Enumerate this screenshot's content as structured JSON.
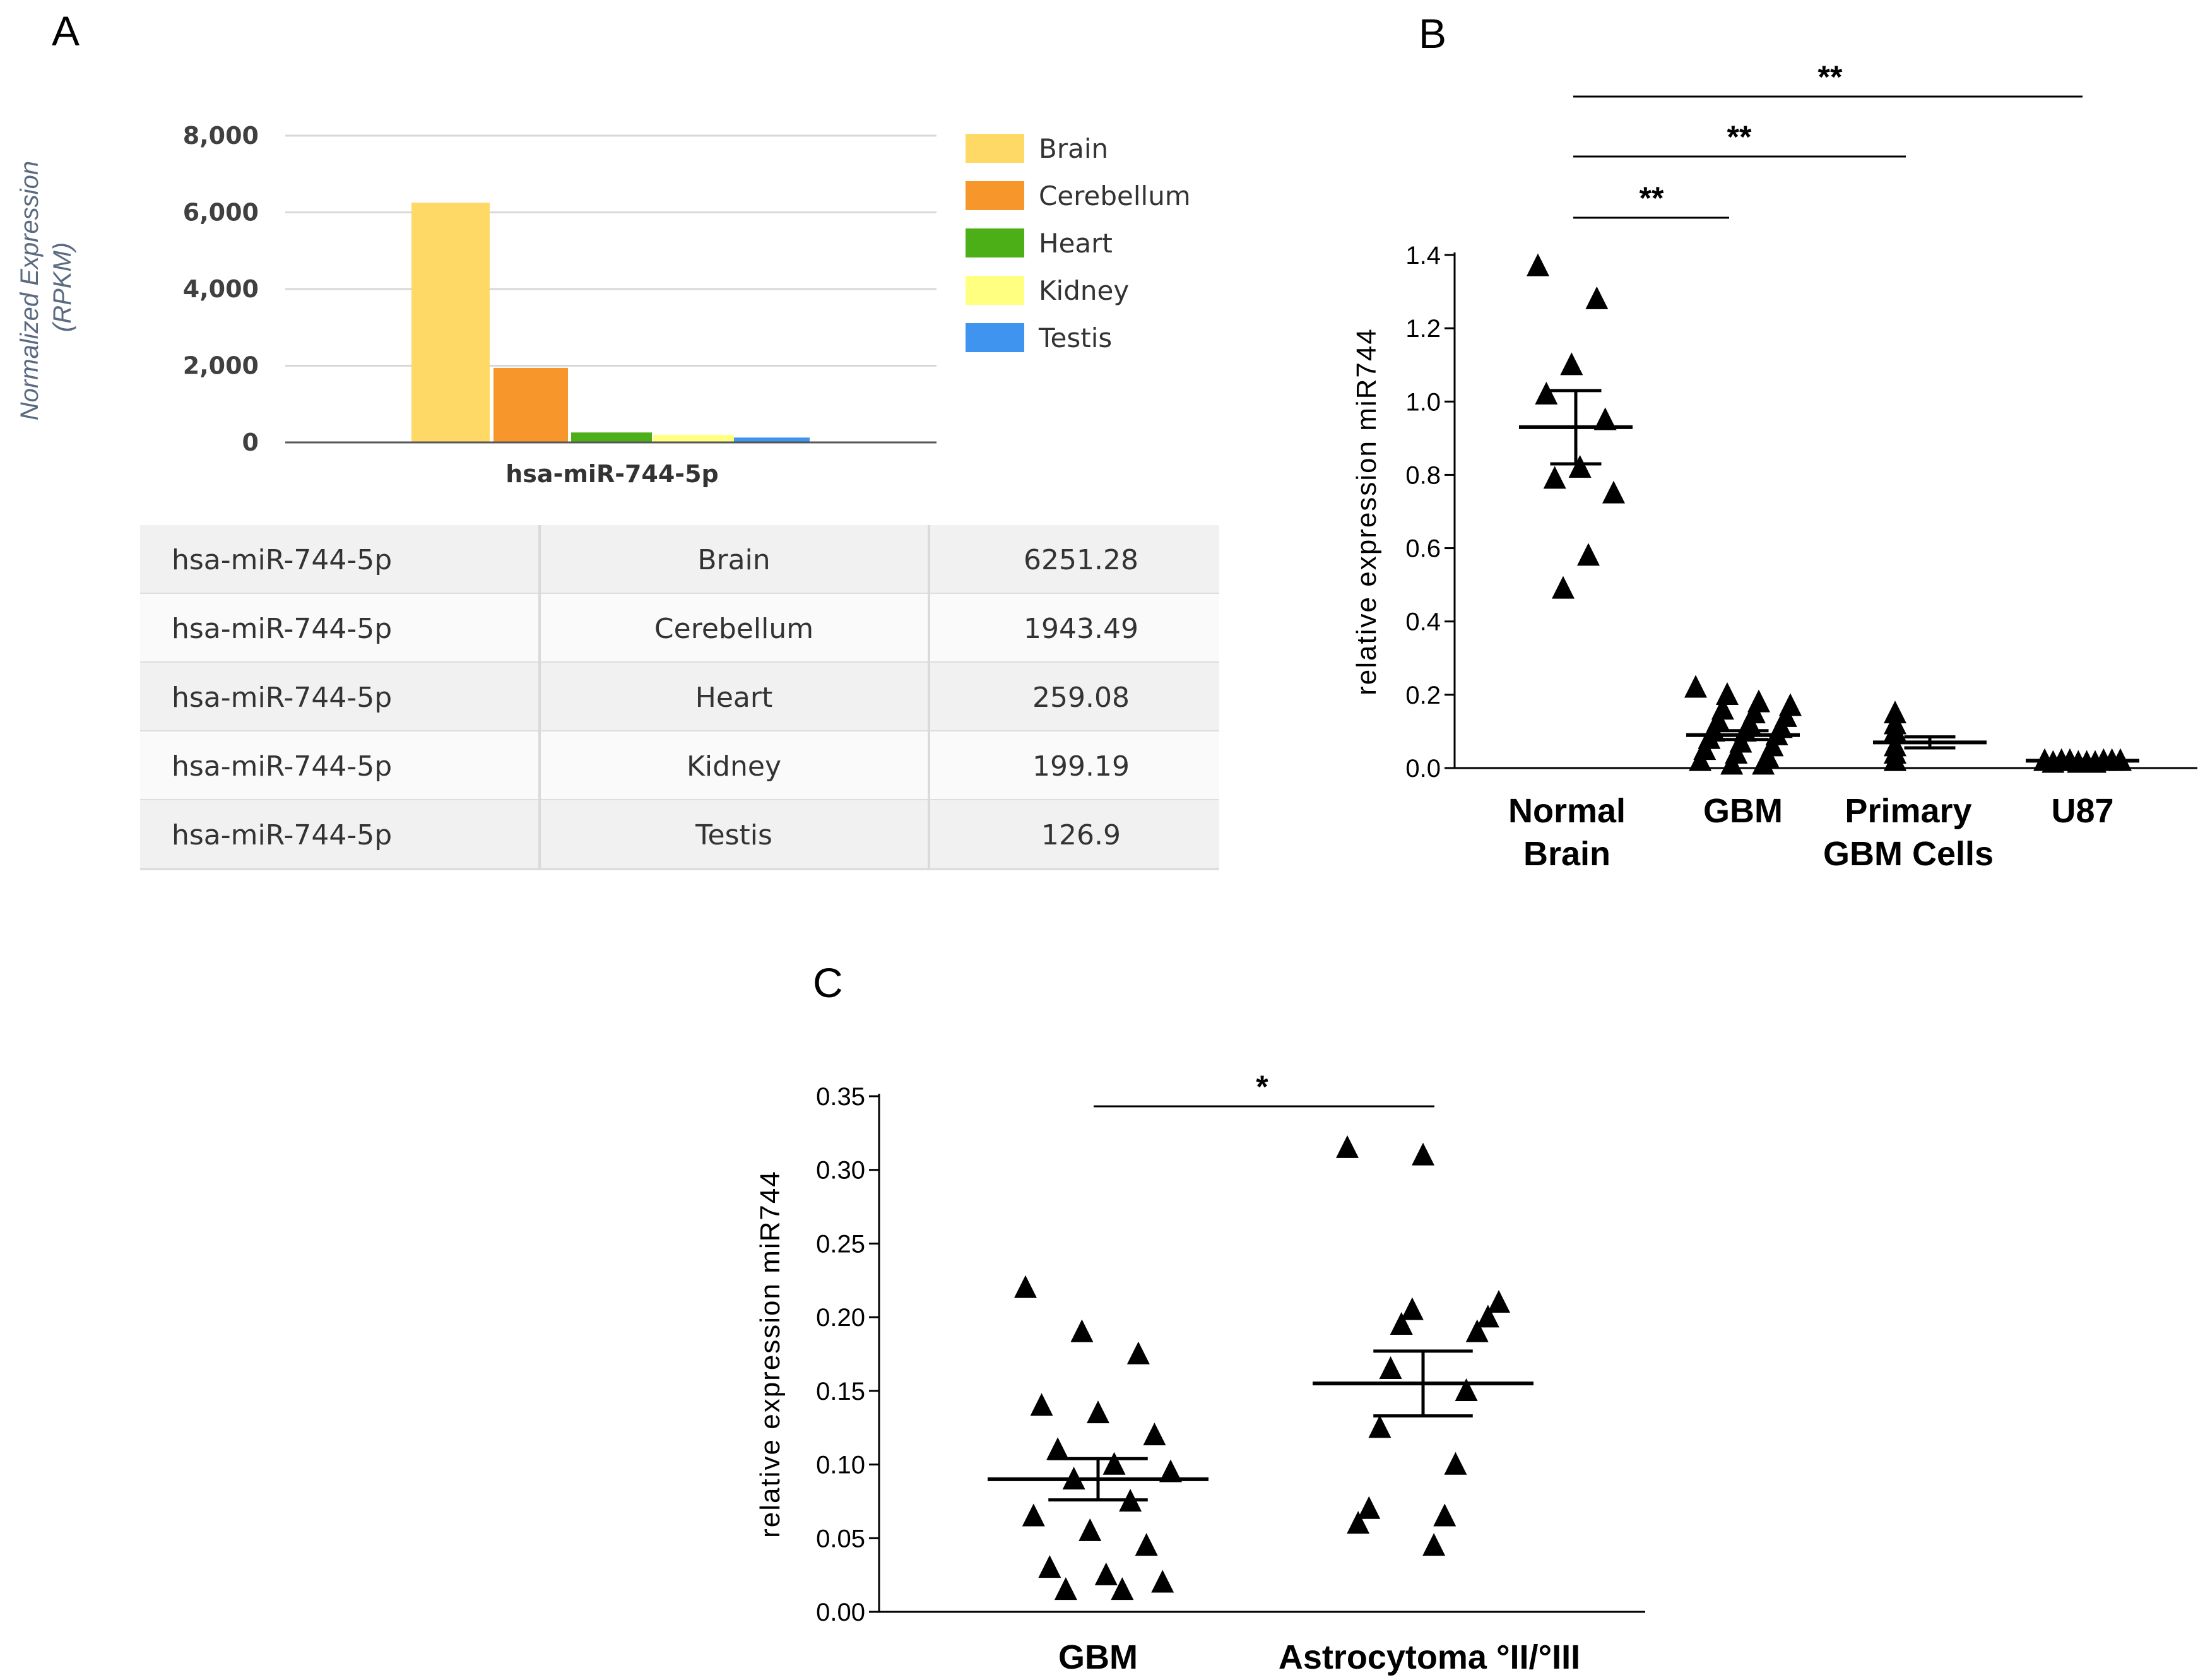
{
  "panels": {
    "a": "A",
    "b": "B",
    "c": "C"
  },
  "chart_data": [
    {
      "panel": "A",
      "type": "bar",
      "ylabel": "Normalized Expression (RPKM)",
      "ylabel_lines": [
        "Normalized Expression",
        "(RPKM)"
      ],
      "ylim": [
        0,
        8000
      ],
      "yticks": [
        0,
        2000,
        4000,
        6000,
        8000
      ],
      "ytick_labels": [
        "0",
        "2,000",
        "4,000",
        "6,000",
        "8,000"
      ],
      "grid": true,
      "categories": [
        "hsa-miR-744-5p"
      ],
      "series": [
        {
          "name": "Brain",
          "values": [
            6251.28
          ],
          "color": "#FFD966"
        },
        {
          "name": "Cerebellum",
          "values": [
            1943.49
          ],
          "color": "#F7962B"
        },
        {
          "name": "Heart",
          "values": [
            259.08
          ],
          "color": "#4DAF18"
        },
        {
          "name": "Kidney",
          "values": [
            199.19
          ],
          "color": "#FFFF80"
        },
        {
          "name": "Testis",
          "values": [
            126.9
          ],
          "color": "#3F94F0"
        }
      ],
      "legend": "right"
    },
    {
      "panel": "A",
      "type": "table",
      "rows": [
        [
          "hsa-miR-744-5p",
          "Brain",
          "6251.28"
        ],
        [
          "hsa-miR-744-5p",
          "Cerebellum",
          "1943.49"
        ],
        [
          "hsa-miR-744-5p",
          "Heart",
          "259.08"
        ],
        [
          "hsa-miR-744-5p",
          "Kidney",
          "199.19"
        ],
        [
          "hsa-miR-744-5p",
          "Testis",
          "126.9"
        ]
      ]
    },
    {
      "panel": "B",
      "type": "scatter",
      "ylabel": "relative expression miR744",
      "ylim": [
        0,
        1.4
      ],
      "yticks": [
        0,
        0.2,
        0.4,
        0.6,
        0.8,
        1.0,
        1.2,
        1.4
      ],
      "ytick_labels": [
        "0.0",
        "0.2",
        "0.4",
        "0.6",
        "0.8",
        "1.0",
        "1.2",
        "1.4"
      ],
      "groups": [
        {
          "label_lines": [
            "Normal",
            "Brain"
          ],
          "mean": 0.93,
          "sem": 0.1,
          "points": [
            1.37,
            1.28,
            1.1,
            1.02,
            0.95,
            0.82,
            0.79,
            0.75,
            0.58,
            0.49
          ]
        },
        {
          "label_lines": [
            "GBM"
          ],
          "mean": 0.09,
          "sem": 0.012,
          "points": [
            0.22,
            0.2,
            0.18,
            0.17,
            0.16,
            0.15,
            0.14,
            0.13,
            0.12,
            0.11,
            0.1,
            0.1,
            0.09,
            0.08,
            0.07,
            0.06,
            0.05,
            0.04,
            0.03,
            0.02,
            0.01,
            0.01
          ]
        },
        {
          "label_lines": [
            "Primary",
            "GBM Cells"
          ],
          "mean": 0.07,
          "sem": 0.015,
          "points": [
            0.15,
            0.12,
            0.1,
            0.06,
            0.04,
            0.02,
            0.02
          ]
        },
        {
          "label_lines": [
            "U87"
          ],
          "mean": 0.02,
          "sem": 0.003,
          "points": [
            0.02,
            0.02,
            0.015,
            0.015,
            0.02,
            0.015,
            0.02,
            0.02,
            0.015,
            0.02
          ]
        }
      ],
      "significance": [
        {
          "label": "**",
          "from": 0,
          "to": 1
        },
        {
          "label": "**",
          "from": 0,
          "to": 2
        },
        {
          "label": "**",
          "from": 0,
          "to": 3
        }
      ]
    },
    {
      "panel": "C",
      "type": "scatter",
      "ylabel": "relative expression miR744",
      "ylim": [
        0,
        0.35
      ],
      "yticks": [
        0,
        0.05,
        0.1,
        0.15,
        0.2,
        0.25,
        0.3,
        0.35
      ],
      "ytick_labels": [
        "0.00",
        "0.05",
        "0.10",
        "0.15",
        "0.20",
        "0.25",
        "0.30",
        "0.35"
      ],
      "groups": [
        {
          "label_lines": [
            "GBM"
          ],
          "mean": 0.09,
          "sem": 0.014,
          "points": [
            0.22,
            0.19,
            0.175,
            0.14,
            0.135,
            0.12,
            0.11,
            0.1,
            0.095,
            0.09,
            0.075,
            0.065,
            0.055,
            0.045,
            0.03,
            0.025,
            0.02,
            0.015,
            0.015
          ]
        },
        {
          "label_lines": [
            "Astrocytoma °II/°III"
          ],
          "mean": 0.155,
          "sem": 0.022,
          "points": [
            0.315,
            0.31,
            0.21,
            0.205,
            0.2,
            0.195,
            0.19,
            0.165,
            0.15,
            0.125,
            0.1,
            0.07,
            0.065,
            0.06,
            0.045
          ]
        }
      ],
      "significance": [
        {
          "label": "*",
          "from": 0,
          "to": 1
        }
      ]
    }
  ]
}
